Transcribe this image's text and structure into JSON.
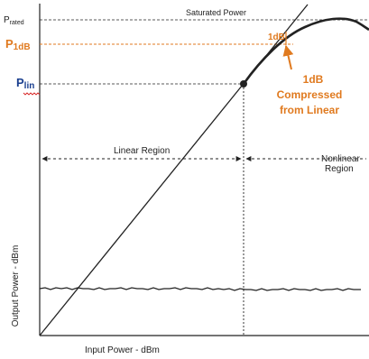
{
  "labels": {
    "p_rated_main": "P",
    "p_rated_sub": "rated",
    "saturated_power": "Saturated Power",
    "p_1db_main": "P",
    "p_1db_sub": "1dB",
    "p_lin_main": "P",
    "p_lin_sub": "lin",
    "one_db_marker": "1dB",
    "compression_line1": "1dB",
    "compression_line2": "Compressed",
    "compression_line3": "from Linear",
    "linear_region": "Linear Region",
    "nonlinear_line1": "Nonlinear",
    "nonlinear_line2": "Region",
    "y_axis": "Output Power - dBm",
    "x_axis": "Input Power - dBm"
  },
  "colors": {
    "accent_orange": "#e07a1f",
    "label_blue": "#1a3f8f",
    "squiggle_red": "#d62020",
    "line": "#222222"
  }
}
